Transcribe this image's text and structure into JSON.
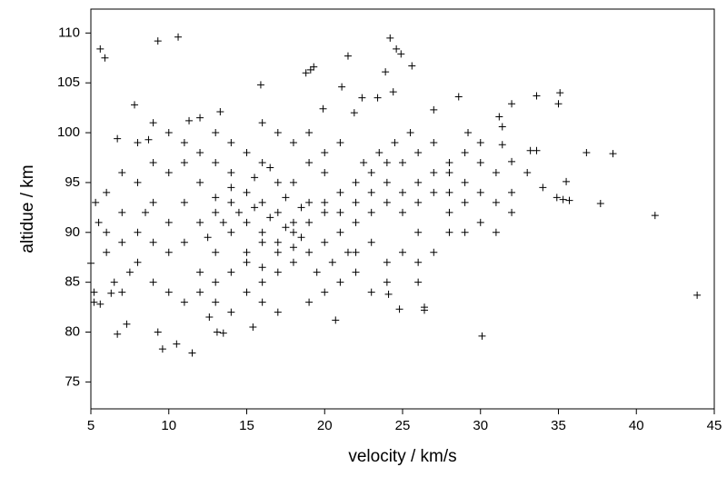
{
  "chart_data": {
    "type": "scatter",
    "x_label": "velocity / km/s",
    "y_label": "altidue / km",
    "marker": "+",
    "color": "#000000",
    "xlim": [
      5,
      45
    ],
    "xticks": [
      5,
      10,
      15,
      20,
      25,
      30,
      35,
      40,
      45
    ],
    "ylim": [
      72.3,
      112.4
    ],
    "yticks": [
      75,
      80,
      85,
      90,
      95,
      100,
      105,
      110
    ],
    "grid": false,
    "x": [
      5.6,
      5.9,
      9.3,
      10.6,
      24.2,
      24.6,
      24.9,
      25.6,
      21.5,
      19.1,
      19.3,
      18.8,
      15.9,
      7.8,
      33.6,
      35.1,
      35,
      36.8,
      38.5,
      37.7,
      41.2,
      43.9,
      30.1,
      26.4,
      26.4,
      24.8,
      24.1,
      20.7,
      11.5,
      9.6,
      10.5,
      6.7,
      7.3,
      5.2,
      5.6,
      35.5,
      35.3,
      35.7,
      34.9,
      33.6,
      33.2,
      32,
      31.4,
      31.4,
      31.2,
      32,
      28.6,
      29.2,
      27,
      23.9,
      22.4,
      23.4,
      24.4,
      21.1,
      21.9,
      19.9,
      13.3,
      11.3,
      8.7,
      6.7,
      13.1,
      13.5,
      15.4,
      12.6,
      9.3,
      6.3,
      5,
      5.2,
      12,
      13,
      14,
      15,
      16,
      17,
      18,
      16,
      15,
      14,
      13,
      12,
      11,
      10,
      9,
      8,
      7,
      6,
      6,
      7,
      8,
      9,
      10,
      11,
      12,
      13,
      14,
      15,
      16,
      17,
      18,
      19,
      20,
      21,
      22,
      23,
      24,
      25,
      26,
      27,
      28,
      29,
      30,
      31,
      32,
      28,
      26,
      25,
      24,
      22,
      21,
      20,
      19,
      17,
      16,
      14,
      13,
      18,
      19,
      20,
      21,
      22,
      23,
      24,
      25,
      26,
      27,
      28,
      29,
      30,
      31,
      27,
      26,
      23,
      22,
      20,
      19,
      17,
      16,
      15,
      14,
      13,
      12,
      11,
      10,
      9,
      8,
      7,
      6,
      5.5,
      5.3,
      8,
      9,
      10,
      11,
      12,
      13,
      14,
      15,
      16,
      17,
      18,
      19,
      20,
      21,
      22,
      23,
      24,
      25,
      26,
      27,
      28,
      29,
      30,
      14,
      15.5,
      16.5,
      17.5,
      18.5,
      13.5,
      12.5,
      15,
      16,
      17,
      18,
      19.5,
      20.5,
      21.5,
      22.5,
      23.5,
      24.5,
      25.5,
      18,
      17,
      16,
      19,
      20,
      21,
      11,
      10,
      9,
      12,
      13,
      14.5,
      15.5,
      16.5,
      17.5,
      18.5,
      8.5,
      7.5,
      6.5,
      7,
      26,
      24,
      23,
      29,
      32,
      33,
      34,
      30,
      31,
      28
    ],
    "values": [
      108.4,
      107.5,
      109.2,
      109.6,
      109.5,
      108.4,
      107.9,
      106.7,
      107.7,
      106.3,
      106.6,
      106,
      104.8,
      102.8,
      103.7,
      104,
      102.9,
      98,
      97.9,
      92.9,
      91.7,
      83.7,
      79.6,
      82.5,
      82.2,
      82.3,
      83.8,
      81.2,
      77.9,
      78.3,
      78.8,
      79.8,
      80.8,
      83,
      82.8,
      95.1,
      93.3,
      93.2,
      93.5,
      98.2,
      98.2,
      97.1,
      98.8,
      100.6,
      101.6,
      102.9,
      103.6,
      100,
      102.3,
      106.1,
      103.5,
      103.5,
      104.1,
      104.6,
      102,
      102.4,
      102.1,
      101.2,
      99.3,
      99.4,
      80,
      79.9,
      80.5,
      81.5,
      80,
      83.9,
      86.9,
      84,
      95,
      97,
      96,
      94,
      93,
      92,
      91,
      89,
      88,
      90,
      88,
      86,
      89,
      91,
      93,
      95,
      96,
      94,
      90,
      89,
      87,
      85,
      84,
      83,
      84,
      85,
      86,
      84,
      85,
      86,
      87,
      88,
      89,
      90,
      91,
      92,
      93,
      94,
      95,
      96,
      97,
      95,
      94,
      93,
      94,
      92,
      90,
      88,
      87,
      86,
      85,
      84,
      83,
      82,
      83,
      82,
      83,
      95,
      97,
      96,
      94,
      95,
      96,
      97,
      97,
      98,
      99,
      94,
      93,
      91,
      90,
      88,
      87,
      89,
      88,
      92,
      93,
      95,
      97,
      98,
      99,
      100,
      98,
      97,
      96,
      97,
      99,
      92,
      88,
      91,
      93,
      90,
      89,
      88,
      93,
      91,
      92,
      93,
      91,
      90,
      89,
      90,
      91,
      93,
      92,
      93,
      94,
      95,
      92,
      93,
      94,
      96,
      98,
      99,
      94.5,
      95.5,
      96.5,
      93.5,
      92.5,
      91,
      89.5,
      87,
      86.5,
      88,
      88.5,
      86,
      87,
      88,
      97,
      98,
      99,
      100,
      99,
      100,
      101,
      100,
      98,
      99,
      99,
      100,
      101,
      101.5,
      93.5,
      92,
      92.5,
      91.5,
      90.5,
      89.5,
      92,
      86,
      85,
      84,
      85,
      85,
      84,
      90,
      92,
      96,
      94.5,
      97,
      96,
      90
    ]
  }
}
